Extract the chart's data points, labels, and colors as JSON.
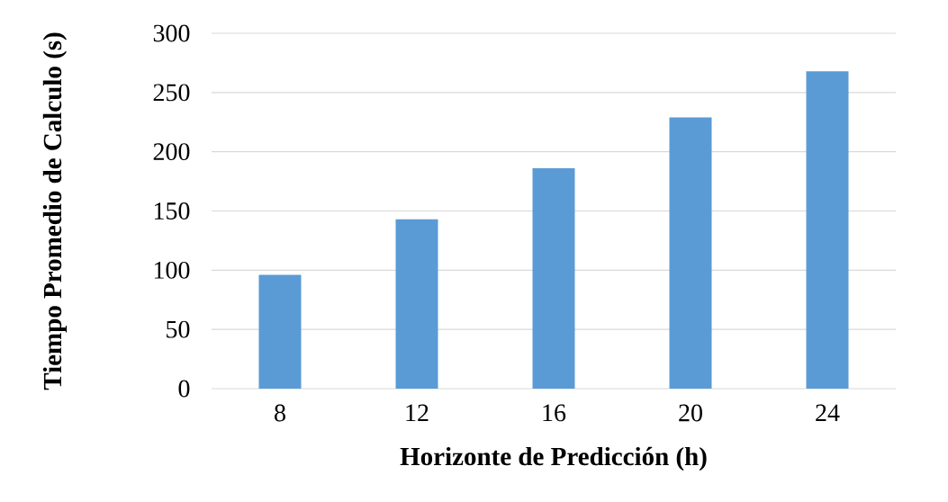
{
  "chart_data": {
    "type": "bar",
    "xlabel": "Horizonte de Predicción (h)",
    "ylabel": "Tiempo Promedio de Calculo (s)",
    "categories": [
      "8",
      "12",
      "16",
      "20",
      "24"
    ],
    "values": [
      96,
      143,
      186,
      229,
      268
    ],
    "color": "#5b9bd5",
    "ylim": [
      0,
      300
    ],
    "yticks": [
      0,
      50,
      100,
      150,
      200,
      250,
      300
    ],
    "grid": "y"
  }
}
